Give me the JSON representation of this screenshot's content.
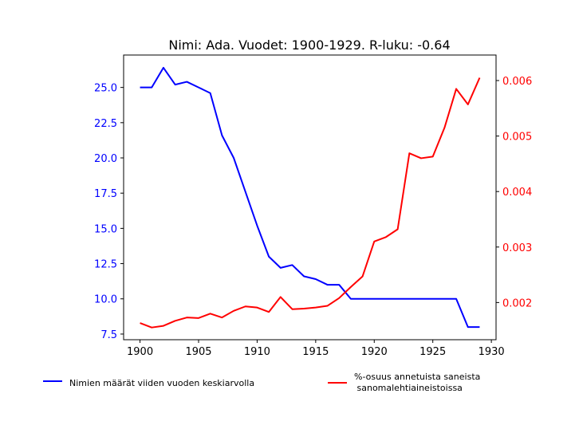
{
  "chart_data": {
    "type": "line",
    "title": "Nimi: Ada. Vuodet: 1900-1929. R-luku: -0.64",
    "x": [
      1900,
      1901,
      1902,
      1903,
      1904,
      1905,
      1906,
      1907,
      1908,
      1909,
      1910,
      1911,
      1912,
      1913,
      1914,
      1915,
      1916,
      1917,
      1918,
      1919,
      1920,
      1921,
      1922,
      1923,
      1924,
      1925,
      1926,
      1927,
      1928,
      1929
    ],
    "xlim": [
      1898.6,
      1930.4
    ],
    "xticks": [
      1900,
      1905,
      1910,
      1915,
      1920,
      1925,
      1930
    ],
    "left_axis": {
      "ylim": [
        7.1,
        27.3
      ],
      "ticks": [
        "7.5",
        "10.0",
        "12.5",
        "15.0",
        "17.5",
        "20.0",
        "22.5",
        "25.0"
      ],
      "color": "#0000ff"
    },
    "right_axis": {
      "ylim": [
        0.00133,
        0.00646
      ],
      "ticks": [
        "0.002",
        "0.003",
        "0.004",
        "0.005",
        "0.006"
      ],
      "color": "#ff0000"
    },
    "series": [
      {
        "name": "Nimien määrät viiden vuoden keskiarvolla",
        "axis": "left",
        "color": "#0000ff",
        "values": [
          25.0,
          25.0,
          26.4,
          25.2,
          25.4,
          25.0,
          24.6,
          21.6,
          20.0,
          17.6,
          15.2,
          13.0,
          12.2,
          12.4,
          11.6,
          11.4,
          11.0,
          11.0,
          10.0,
          10.0,
          10.0,
          10.0,
          10.0,
          10.0,
          10.0,
          10.0,
          10.0,
          10.0,
          8.0,
          8.0
        ]
      },
      {
        "name": "%-osuus annetuista saneista\n sanomalehtiaineistoissa",
        "axis": "right",
        "color": "#ff0000",
        "values": [
          0.00163,
          0.00155,
          0.00158,
          0.00167,
          0.00173,
          0.00172,
          0.0018,
          0.00173,
          0.00185,
          0.00193,
          0.00191,
          0.00183,
          0.0021,
          0.00188,
          0.00189,
          0.00191,
          0.00194,
          0.00208,
          0.00228,
          0.00247,
          0.0031,
          0.00318,
          0.00332,
          0.00469,
          0.0046,
          0.00463,
          0.00515,
          0.00585,
          0.00557,
          0.00605
        ]
      }
    ],
    "legend_placement": "bottom"
  }
}
